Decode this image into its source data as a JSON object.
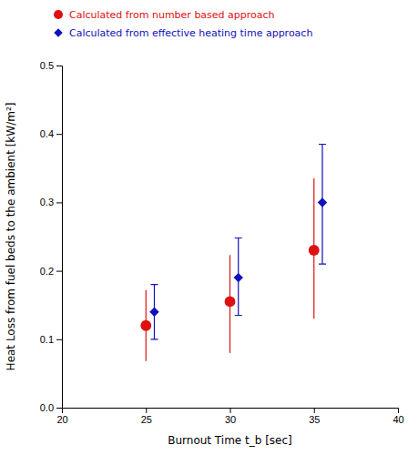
{
  "chart_data": {
    "type": "scatter",
    "xlabel": "Burnout Time t_b [sec]",
    "ylabel": "Heat Loss from fuel beds to the ambient [kW/m²]",
    "series": [
      {
        "name": "Calculated from number based approach",
        "color": "#dd1111",
        "marker": "circle",
        "x": [
          25,
          30,
          35
        ],
        "values": [
          0.12,
          0.155,
          0.23
        ],
        "error_lower": [
          0.052,
          0.075,
          0.1
        ],
        "error_upper": [
          0.052,
          0.068,
          0.105
        ]
      },
      {
        "name": "Calculated from effective heating time approach",
        "color": "#1111bb",
        "marker": "diamond",
        "x": [
          25.5,
          30.5,
          35.5
        ],
        "values": [
          0.14,
          0.19,
          0.3
        ],
        "error_lower": [
          0.04,
          0.055,
          0.09
        ],
        "error_upper": [
          0.04,
          0.058,
          0.085
        ]
      }
    ],
    "xlim": [
      20,
      40
    ],
    "ylim": [
      0,
      0.5
    ],
    "xticks": [
      20,
      25,
      30,
      35,
      40
    ],
    "yticks": [
      {
        "value": 0,
        "label": "0.0"
      },
      0.1,
      0.2,
      0.3,
      0.4,
      0.5
    ],
    "grid": false,
    "legend": "top"
  }
}
